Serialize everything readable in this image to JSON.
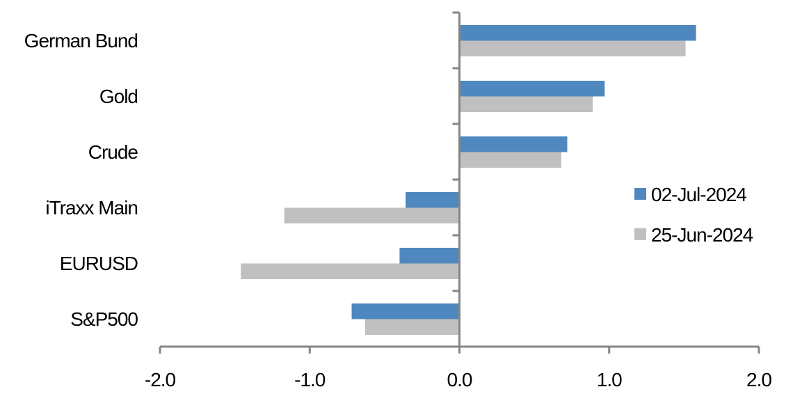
{
  "chart_data": {
    "type": "bar",
    "orientation": "horizontal",
    "title": "",
    "xlabel": "",
    "ylabel": "",
    "categories": [
      "German Bund",
      "Gold",
      "Crude",
      "iTraxx Main",
      "EURUSD",
      "S&P500"
    ],
    "series": [
      {
        "name": "02-Jul-2024",
        "color": "#4F88BE",
        "values": [
          1.58,
          0.97,
          0.72,
          -0.36,
          -0.4,
          -0.72
        ]
      },
      {
        "name": "25-Jun-2024",
        "color": "#C0C0C0",
        "values": [
          1.51,
          0.89,
          0.68,
          -1.17,
          -1.46,
          -0.63
        ]
      }
    ],
    "xlim": [
      -2.0,
      2.0
    ],
    "xticks": [
      "-2.0",
      "-1.0",
      "0.0",
      "1.0",
      "2.0"
    ],
    "xtick_values": [
      -2,
      -1,
      0,
      1,
      2
    ],
    "grid": false,
    "legend_position": "right"
  }
}
